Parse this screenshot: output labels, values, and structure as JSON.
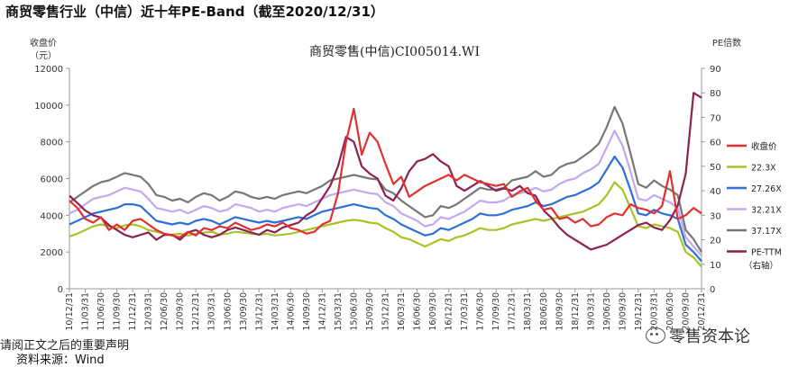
{
  "page": {
    "title": "商贸零售行业（中信）近十年PE-Band（截至2020/12/31）",
    "disclaimer": "请阅正文之后的重要声明",
    "source": "资料来源：Wind",
    "watermark": "零售资本论"
  },
  "chart_data": {
    "type": "line",
    "title": "商贸零售(中信)CI005014.WI",
    "ylabel_left": "收盘价（元）",
    "ylabel_right": "PE倍数",
    "ylim_left": [
      0,
      12000
    ],
    "ylim_right": [
      0,
      90
    ],
    "yticks_left": [
      0,
      2000,
      4000,
      6000,
      8000,
      10000,
      12000
    ],
    "yticks_right": [
      0,
      10,
      20,
      30,
      40,
      50,
      60,
      70,
      80,
      90
    ],
    "x_ticks": [
      "10/12/31",
      "11/03/31",
      "11/06/30",
      "11/09/30",
      "11/12/31",
      "12/03/31",
      "12/06/30",
      "12/09/30",
      "12/12/31",
      "13/03/31",
      "13/06/30",
      "13/09/30",
      "13/12/31",
      "14/03/31",
      "14/06/30",
      "14/09/30",
      "14/12/31",
      "15/03/31",
      "15/06/30",
      "15/09/30",
      "15/12/31",
      "16/03/31",
      "16/06/30",
      "16/09/30",
      "16/12/31",
      "17/03/31",
      "17/06/30",
      "17/09/30",
      "17/12/31",
      "18/03/31",
      "18/06/30",
      "18/09/30",
      "18/12/31",
      "19/03/31",
      "19/06/30",
      "19/09/30",
      "19/12/31",
      "20/03/31",
      "20/06/30",
      "20/09/30",
      "20/12/31"
    ],
    "legend_position": "right",
    "legend_suffix": "（右轴）",
    "colors": {
      "close": "#e03030",
      "band1": "#a8c326",
      "band2": "#2e6fd8",
      "band3": "#c3a8f0",
      "band4": "#777777",
      "pe": "#8b2252"
    },
    "series": [
      {
        "key": "close",
        "name": "收盘价",
        "axis": "left",
        "values": [
          4800,
          4400,
          3800,
          3600,
          3900,
          3200,
          3500,
          3200,
          3700,
          3800,
          3500,
          3200,
          3000,
          2900,
          2800,
          3100,
          2900,
          3300,
          3200,
          3400,
          3300,
          3600,
          3400,
          3200,
          3300,
          3500,
          3400,
          3600,
          3300,
          3200,
          3000,
          3100,
          3500,
          3700,
          5200,
          8000,
          9800,
          7300,
          8500,
          8000,
          6800,
          5700,
          6100,
          5000,
          5300,
          5600,
          5800,
          6000,
          6200,
          5900,
          6200,
          6000,
          5800,
          5700,
          5600,
          5700,
          5000,
          5300,
          5500,
          4800,
          4300,
          4400,
          3800,
          3900,
          3600,
          3800,
          3400,
          3500,
          3900,
          4100,
          4000,
          4600,
          4400,
          4300,
          4100,
          4500,
          6400,
          3800,
          4000,
          4400,
          4100
        ]
      },
      {
        "key": "band1",
        "name": "22.3X",
        "axis": "left",
        "values": [
          2850,
          3000,
          3200,
          3400,
          3500,
          3400,
          3300,
          3450,
          3500,
          3400,
          3200,
          3100,
          3000,
          2950,
          3000,
          2900,
          3000,
          3050,
          3100,
          2950,
          3000,
          3100,
          3050,
          3000,
          2950,
          3000,
          2900,
          2950,
          3000,
          3100,
          3200,
          3300,
          3400,
          3500,
          3600,
          3700,
          3750,
          3700,
          3600,
          3550,
          3300,
          3100,
          2800,
          2700,
          2500,
          2300,
          2500,
          2700,
          2600,
          2800,
          2900,
          3100,
          3300,
          3200,
          3200,
          3300,
          3500,
          3600,
          3700,
          3800,
          3700,
          3800,
          3900,
          4000,
          4100,
          4200,
          4400,
          4600,
          5100,
          5800,
          5400,
          4400,
          3400,
          3300,
          3500,
          3400,
          3300,
          3100,
          2000,
          1700,
          1200
        ]
      },
      {
        "key": "band2",
        "name": "27.26X",
        "axis": "left",
        "values": [
          3500,
          3700,
          3900,
          4100,
          4200,
          4300,
          4400,
          4600,
          4600,
          4500,
          4100,
          3700,
          3600,
          3500,
          3600,
          3500,
          3700,
          3800,
          3700,
          3500,
          3700,
          3900,
          3800,
          3700,
          3600,
          3700,
          3600,
          3700,
          3800,
          3900,
          3800,
          4000,
          4200,
          4300,
          4400,
          4500,
          4600,
          4500,
          4400,
          4350,
          4000,
          3800,
          3500,
          3300,
          3100,
          2900,
          3000,
          3300,
          3200,
          3400,
          3600,
          3800,
          4100,
          4000,
          4000,
          4100,
          4300,
          4400,
          4500,
          4700,
          4500,
          4600,
          4800,
          5000,
          5100,
          5300,
          5500,
          5800,
          6500,
          7200,
          6600,
          5400,
          4100,
          4000,
          4300,
          4100,
          4000,
          3800,
          2400,
          2000,
          1500
        ]
      },
      {
        "key": "band3",
        "name": "32.21X",
        "axis": "left",
        "values": [
          4100,
          4300,
          4600,
          4900,
          5000,
          5100,
          5300,
          5500,
          5400,
          5300,
          4900,
          4400,
          4300,
          4200,
          4300,
          4100,
          4300,
          4500,
          4400,
          4200,
          4300,
          4600,
          4500,
          4400,
          4200,
          4300,
          4200,
          4400,
          4500,
          4600,
          4500,
          4700,
          4900,
          5100,
          5200,
          5300,
          5400,
          5300,
          5200,
          5150,
          4700,
          4500,
          4100,
          3900,
          3700,
          3400,
          3500,
          3900,
          3800,
          4000,
          4200,
          4500,
          4800,
          4700,
          4700,
          4800,
          5100,
          5200,
          5300,
          5500,
          5300,
          5400,
          5700,
          5900,
          6000,
          6300,
          6500,
          6800,
          7700,
          8600,
          7800,
          6400,
          4900,
          4800,
          5100,
          4900,
          4700,
          4400,
          2800,
          2300,
          1800
        ]
      },
      {
        "key": "band4",
        "name": "37.17X",
        "axis": "left",
        "values": [
          4700,
          5000,
          5300,
          5600,
          5800,
          5900,
          6100,
          6300,
          6200,
          6100,
          5700,
          5100,
          5000,
          4800,
          4900,
          4700,
          5000,
          5200,
          5100,
          4800,
          5000,
          5300,
          5200,
          5000,
          4900,
          5000,
          4900,
          5100,
          5200,
          5300,
          5200,
          5400,
          5600,
          5900,
          6000,
          6100,
          6200,
          6100,
          6000,
          5950,
          5400,
          5200,
          4800,
          4500,
          4200,
          3900,
          4000,
          4500,
          4400,
          4600,
          4900,
          5200,
          5500,
          5400,
          5400,
          5500,
          5900,
          6000,
          6100,
          6400,
          6100,
          6200,
          6600,
          6800,
          6900,
          7200,
          7500,
          7900,
          8800,
          9900,
          9000,
          7400,
          5700,
          5500,
          5900,
          5600,
          5400,
          5100,
          3200,
          2700,
          2000
        ]
      },
      {
        "key": "pe",
        "name": "PE-TTM",
        "axis": "right",
        "values": [
          38,
          35,
          32,
          30,
          29,
          26,
          24,
          22,
          21,
          22,
          23,
          20,
          22,
          22,
          20,
          23,
          24,
          22,
          21,
          22,
          24,
          25,
          24,
          23,
          22,
          24,
          23,
          25,
          26,
          27,
          30,
          32,
          37,
          42,
          50,
          62,
          60,
          50,
          47,
          45,
          38,
          36,
          41,
          48,
          52,
          53,
          55,
          52,
          50,
          42,
          40,
          42,
          44,
          42,
          40,
          41,
          40,
          42,
          39,
          38,
          32,
          29,
          25,
          22,
          20,
          18,
          16,
          17,
          18,
          20,
          22,
          24,
          26,
          27,
          25,
          24,
          28,
          34,
          47,
          80,
          78
        ]
      }
    ]
  }
}
